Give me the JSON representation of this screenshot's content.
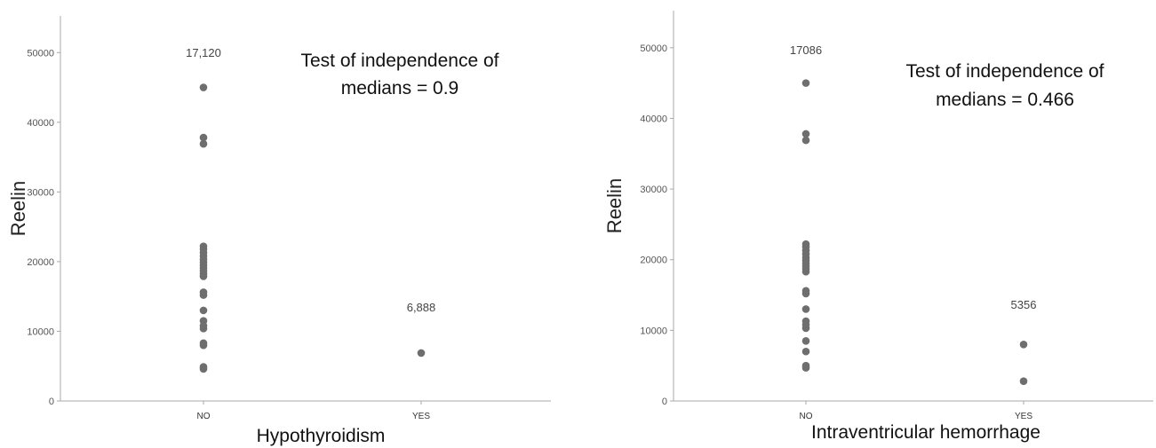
{
  "chart_data": [
    {
      "type": "scatter",
      "xlabel": "Hypothyroidism",
      "ylabel": "Reelin",
      "categories": [
        "NO",
        "YES"
      ],
      "yticks": [
        0,
        10000,
        20000,
        30000,
        40000,
        50000
      ],
      "ylim": [
        0,
        55000
      ],
      "grid": false,
      "medians": [
        "17,120",
        "6,888"
      ],
      "annotation": [
        "Test of independence of",
        "medians = 0.9"
      ],
      "points": [
        {
          "x": "NO",
          "values": [
            45000,
            37800,
            36900,
            22200,
            21800,
            21300,
            20800,
            20300,
            19900,
            19500,
            19100,
            18700,
            18300,
            17900,
            15600,
            15200,
            13000,
            11500,
            10800,
            10400,
            8300,
            8000,
            4900,
            4600
          ]
        },
        {
          "x": "YES",
          "values": [
            6888
          ]
        }
      ]
    },
    {
      "type": "scatter",
      "xlabel": "Intraventricular hemorrhage",
      "ylabel": "Reelin",
      "categories": [
        "NO",
        "YES"
      ],
      "yticks": [
        0,
        10000,
        20000,
        30000,
        40000,
        50000
      ],
      "ylim": [
        0,
        55000
      ],
      "grid": false,
      "medians": [
        "17086",
        "5356"
      ],
      "annotation": [
        "Test of independence of",
        "medians = 0.466"
      ],
      "points": [
        {
          "x": "NO",
          "values": [
            45000,
            37800,
            36900,
            22200,
            21800,
            21300,
            20800,
            20300,
            19900,
            19500,
            19100,
            18700,
            18300,
            15600,
            15200,
            13000,
            11300,
            10800,
            10300,
            8500,
            7000,
            5000,
            4700
          ]
        },
        {
          "x": "YES",
          "values": [
            8000,
            2800
          ]
        }
      ]
    }
  ]
}
